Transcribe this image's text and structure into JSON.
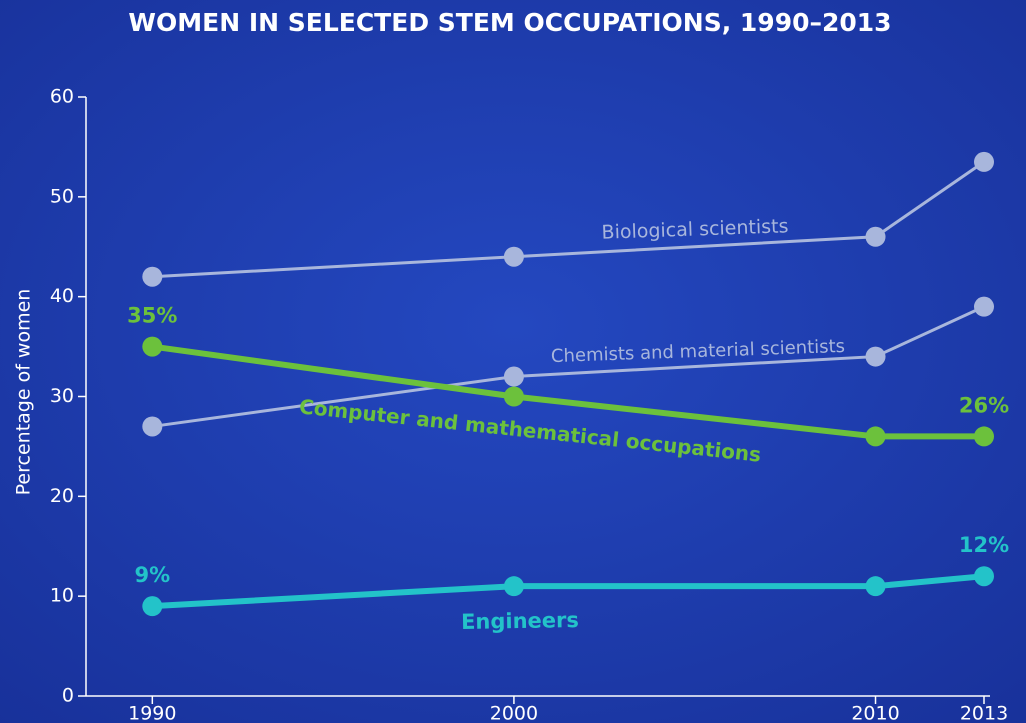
{
  "chart_data": {
    "type": "line",
    "title": "WOMEN IN SELECTED STEM OCCUPATIONS, 1990–2013",
    "y_label": "Percentage of women",
    "x": [
      1990,
      2000,
      2010,
      2013
    ],
    "xlim": [
      1988,
      2013
    ],
    "xticks": [
      1990,
      2000,
      2010,
      2013
    ],
    "ylim": [
      0,
      60
    ],
    "yticks": [
      0,
      10,
      20,
      30,
      40,
      50,
      60
    ],
    "series": [
      {
        "name": "Biological scientists",
        "color": "#a8b6dc",
        "values": [
          42,
          44,
          46,
          53.5
        ]
      },
      {
        "name": "Chemists and material scientists",
        "color": "#a8b6dc",
        "values": [
          27,
          32,
          34,
          39
        ]
      },
      {
        "name": "Computer and mathematical occupations",
        "color": "#6cc13c",
        "values": [
          35,
          30,
          26,
          26
        ],
        "value_labels": [
          "35%",
          null,
          null,
          "26%"
        ]
      },
      {
        "name": "Engineers",
        "color": "#23c3c9",
        "values": [
          9,
          11,
          11,
          12
        ],
        "value_labels": [
          "9%",
          null,
          null,
          "12%"
        ]
      }
    ]
  }
}
